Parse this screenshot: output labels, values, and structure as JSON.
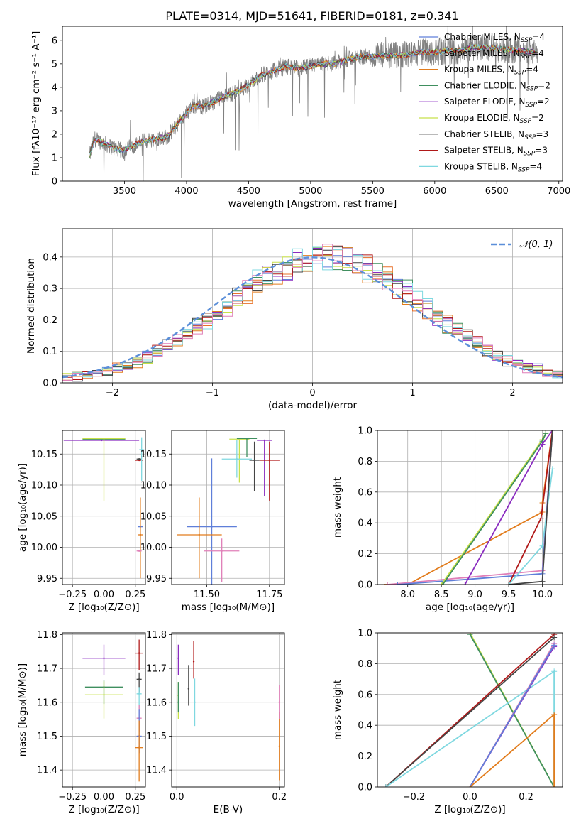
{
  "figure_title": "PLATE=0314, MJD=51641, FIBERID=0181, z=0.341",
  "colors": {
    "Chabrier MILES": "#5f7fd9",
    "Salpeter MILES": "#e8702a",
    "Kroupa MILES": "#e27c1c",
    "Chabrier ELODIE": "#3f8f5f",
    "Salpeter ELODIE": "#8a2cc0",
    "Kroupa ELODIE": "#c8e04a",
    "Chabrier STELIB": "#444444",
    "Salpeter STELIB": "#b01818",
    "Kroupa STELIB": "#7fd8e0",
    "pink": "#e07fb8",
    "data": "#808080",
    "normal": "#5b8fd9"
  },
  "chart_data": [
    {
      "id": "spectrum",
      "type": "line",
      "title": "PLATE=0314, MJD=51641, FIBERID=0181, z=0.341",
      "xlabel": "wavelength [Angstrom, rest frame]",
      "ylabel": "Flux [fλ10⁻¹⁷ erg cm⁻² s⁻¹ A⁻¹]",
      "xlim": [
        3000,
        7030
      ],
      "ylim": [
        0,
        6.6
      ],
      "xticks": [
        3500,
        4000,
        4500,
        5000,
        5500,
        6000,
        6500,
        7000
      ],
      "yticks": [
        0,
        1,
        2,
        3,
        4,
        5,
        6
      ],
      "grid": false,
      "legend_position": "top-right",
      "series": [
        {
          "name": "Chabrier MILES, N_SSP=4",
          "label_plain": "Chabrier MILES, N",
          "label_sub": "SSP",
          "label_tail": "=4",
          "color_key": "Chabrier MILES"
        },
        {
          "name": "Salpeter MILES, N_SSP=4",
          "label_plain": "Salpeter MILES, N",
          "label_sub": "SSP",
          "label_tail": "=4",
          "color_key": "Salpeter MILES"
        },
        {
          "name": "Kroupa MILES, N_SSP=4",
          "label_plain": "Kroupa MILES, N",
          "label_sub": "SSP",
          "label_tail": "=4",
          "color_key": "Kroupa MILES"
        },
        {
          "name": "Chabrier ELODIE, N_SSP=2",
          "label_plain": "Chabrier ELODIE, N",
          "label_sub": "SSP",
          "label_tail": "=2",
          "color_key": "Chabrier ELODIE"
        },
        {
          "name": "Salpeter ELODIE, N_SSP=2",
          "label_plain": "Salpeter ELODIE, N",
          "label_sub": "SSP",
          "label_tail": "=2",
          "color_key": "Salpeter ELODIE"
        },
        {
          "name": "Kroupa ELODIE, N_SSP=2",
          "label_plain": "Kroupa ELODIE, N",
          "label_sub": "SSP",
          "label_tail": "=2",
          "color_key": "Kroupa ELODIE"
        },
        {
          "name": "Chabrier STELIB, N_SSP=3",
          "label_plain": "Chabrier STELIB, N",
          "label_sub": "SSP",
          "label_tail": "=3",
          "color_key": "Chabrier STELIB"
        },
        {
          "name": "Salpeter STELIB, N_SSP=3",
          "label_plain": "Salpeter STELIB, N",
          "label_sub": "SSP",
          "label_tail": "=3",
          "color_key": "Salpeter STELIB"
        },
        {
          "name": "Kroupa STELIB, N_SSP=4",
          "label_plain": "Kroupa STELIB, N",
          "label_sub": "SSP",
          "label_tail": "=4",
          "color_key": "Kroupa STELIB"
        }
      ],
      "continuum_approx": [
        [
          3220,
          1.1
        ],
        [
          3260,
          1.8
        ],
        [
          3300,
          1.7
        ],
        [
          3400,
          1.45
        ],
        [
          3480,
          1.3
        ],
        [
          3560,
          1.5
        ],
        [
          3650,
          1.7
        ],
        [
          3750,
          1.8
        ],
        [
          3850,
          1.9
        ],
        [
          3950,
          2.6
        ],
        [
          4050,
          3.2
        ],
        [
          4150,
          3.2
        ],
        [
          4300,
          3.6
        ],
        [
          4400,
          3.8
        ],
        [
          4500,
          4.1
        ],
        [
          4600,
          4.5
        ],
        [
          4700,
          4.7
        ],
        [
          4800,
          4.9
        ],
        [
          4900,
          4.8
        ],
        [
          5000,
          4.9
        ],
        [
          5100,
          5.0
        ],
        [
          5200,
          5.0
        ],
        [
          5300,
          5.2
        ],
        [
          5400,
          5.3
        ],
        [
          5500,
          5.3
        ],
        [
          5600,
          5.35
        ],
        [
          5700,
          5.35
        ],
        [
          5800,
          5.4
        ],
        [
          5900,
          5.5
        ],
        [
          6000,
          5.5
        ],
        [
          6100,
          5.55
        ],
        [
          6200,
          5.55
        ],
        [
          6300,
          5.7
        ],
        [
          6400,
          5.7
        ],
        [
          6500,
          5.65
        ],
        [
          6600,
          5.6
        ],
        [
          6700,
          5.55
        ],
        [
          6800,
          5.5
        ]
      ]
    },
    {
      "id": "residuals",
      "type": "line",
      "xlabel": "(data-model)/error",
      "ylabel": "Normed distribution",
      "xlim": [
        -2.5,
        2.5
      ],
      "ylim": [
        0,
        0.49
      ],
      "xticks": [
        -2,
        -1,
        0,
        1,
        2
      ],
      "xtick_labels": [
        "−2",
        "−1",
        "0",
        "1",
        "2"
      ],
      "yticks": [
        0,
        0.1,
        0.2,
        0.3,
        0.4
      ],
      "ytick_labels": [
        "0.0",
        "0.1",
        "0.2",
        "0.3",
        "0.4"
      ],
      "grid": true,
      "legend_position": "top-right",
      "legend": "𝒩(0, 1)",
      "bin_width": 0.1
    },
    {
      "id": "age_vs_Z",
      "type": "scatter",
      "xlabel": "Z [log₁₀(Z/Z⊙)]",
      "ylabel": "age  [log₁₀(age/yr)]",
      "xlim": [
        -0.33,
        0.33
      ],
      "ylim": [
        9.94,
        10.188
      ],
      "xticks": [
        -0.25,
        0,
        0.25
      ],
      "xtick_labels": [
        "−0.25",
        "0.00",
        "0.25"
      ],
      "yticks": [
        9.95,
        10.0,
        10.05,
        10.1,
        10.15
      ],
      "ytick_labels": [
        "9.95",
        "10.00",
        "10.05",
        "10.10",
        "10.15"
      ],
      "points": [
        {
          "c": "Salpeter ELODIE",
          "x": -0.02,
          "xerr": 0.3,
          "y": 10.172,
          "yerr": [
            0,
            0
          ]
        },
        {
          "c": "Chabrier ELODIE",
          "x": 0.0,
          "xerr": 0.17,
          "y": 10.174,
          "yerr": [
            0,
            0
          ]
        },
        {
          "c": "Kroupa ELODIE",
          "x": 0.0,
          "xerr": 0.17,
          "y": 10.175,
          "yerr": [
            0.1,
            0
          ]
        },
        {
          "c": "Salpeter STELIB",
          "x": 0.28,
          "xerr": 0.03,
          "y": 10.14,
          "yerr": [
            0,
            0
          ]
        },
        {
          "c": "Chabrier STELIB",
          "x": 0.28,
          "xerr": 0.02,
          "y": 10.142,
          "yerr": [
            0,
            0
          ]
        },
        {
          "c": "Kroupa STELIB",
          "x": 0.3,
          "xerr": 0.02,
          "y": 10.157,
          "yerr": [
            0.05,
            0.02
          ]
        },
        {
          "c": "Chabrier MILES",
          "x": 0.29,
          "xerr": 0.02,
          "y": 10.033,
          "yerr": [
            0,
            0
          ]
        },
        {
          "c": "Kroupa MILES",
          "x": 0.29,
          "xerr": 0.02,
          "y": 10.02,
          "yerr": [
            0.07,
            0.06
          ]
        },
        {
          "c": "pink",
          "x": 0.28,
          "xerr": 0.02,
          "y": 9.994,
          "yerr": [
            0,
            0
          ]
        }
      ]
    },
    {
      "id": "age_vs_mass",
      "type": "scatter",
      "xlabel": "mass [log₁₀(M/M⊙)]",
      "ylabel": "",
      "xlim": [
        11.36,
        11.81
      ],
      "ylim": [
        9.94,
        10.188
      ],
      "xticks": [
        11.5,
        11.75
      ],
      "xtick_labels": [
        "11.50",
        "11.75"
      ],
      "yticks": [
        9.95,
        10.0,
        10.05,
        10.1,
        10.15
      ],
      "ytick_labels": [
        "9.95",
        "10.00",
        "10.05",
        "10.10",
        "10.15"
      ],
      "points": [
        {
          "c": "Chabrier MILES",
          "x": 11.52,
          "xerr": 0.1,
          "y": 10.033,
          "yerr": [
            0.1,
            0.11
          ]
        },
        {
          "c": "Kroupa MILES",
          "x": 11.47,
          "xerr": 0.09,
          "y": 10.02,
          "yerr": [
            0.07,
            0.06
          ]
        },
        {
          "c": "pink",
          "x": 11.56,
          "xerr": 0.07,
          "y": 9.994,
          "yerr": [
            0.05,
            0.02
          ]
        },
        {
          "c": "Kroupa ELODIE",
          "x": 11.63,
          "xerr": 0.04,
          "y": 10.174,
          "yerr": [
            0.07,
            0
          ]
        },
        {
          "c": "Chabrier ELODIE",
          "x": 11.66,
          "xerr": 0.04,
          "y": 10.175,
          "yerr": [
            0.03,
            0
          ]
        },
        {
          "c": "Kroupa STELIB",
          "x": 11.62,
          "xerr": 0.06,
          "y": 10.142,
          "yerr": [
            0.03,
            0.03
          ]
        },
        {
          "c": "Salpeter ELODIE",
          "x": 11.73,
          "xerr": 0.03,
          "y": 10.172,
          "yerr": [
            0.09,
            0
          ]
        },
        {
          "c": "Chabrier STELIB",
          "x": 11.69,
          "xerr": 0.02,
          "y": 10.14,
          "yerr": [
            0.05,
            0.03
          ]
        },
        {
          "c": "Salpeter STELIB",
          "x": 11.75,
          "xerr": 0.04,
          "y": 10.14,
          "yerr": [
            0.065,
            0.03
          ]
        }
      ]
    },
    {
      "id": "massweight_vs_age",
      "type": "line",
      "xlabel": "age  [log₁₀(age/yr)]",
      "ylabel": "mass weight",
      "xlim": [
        7.55,
        10.3
      ],
      "ylim": [
        0,
        1.0
      ],
      "xticks": [
        8.0,
        8.5,
        9.0,
        9.5,
        10.0
      ],
      "xtick_labels": [
        "8.0",
        "8.5",
        "9.0",
        "9.5",
        "10.0"
      ],
      "yticks": [
        0,
        0.2,
        0.4,
        0.6,
        0.8,
        1.0
      ],
      "ytick_labels": [
        "0.0",
        "0.2",
        "0.4",
        "0.6",
        "0.8",
        "1.0"
      ],
      "grid": true,
      "series": [
        {
          "c": "Kroupa MILES",
          "x": [
            7.65,
            8.0,
            10.0,
            10.0,
            10.15
          ],
          "y": [
            0,
            0,
            0.47,
            0.53,
            1.0
          ]
        },
        {
          "c": "pink",
          "x": [
            7.7,
            10.0,
            10.15
          ],
          "y": [
            0,
            0.09,
            1.0
          ]
        },
        {
          "c": "Chabrier MILES",
          "x": [
            7.85,
            10.0,
            10.15
          ],
          "y": [
            0,
            0.07,
            1.0
          ]
        },
        {
          "c": "Kroupa ELODIE",
          "x": [
            8.5,
            10.0,
            10.05
          ],
          "y": [
            0,
            0.94,
            0.98
          ]
        },
        {
          "c": "Chabrier ELODIE",
          "x": [
            8.52,
            10.0,
            10.05
          ],
          "y": [
            0,
            0.93,
            0.98
          ]
        },
        {
          "c": "Salpeter ELODIE",
          "x": [
            8.85,
            10.0,
            10.15
          ],
          "y": [
            0,
            0.91,
            1.0
          ]
        },
        {
          "c": "Salpeter STELIB",
          "x": [
            9.5,
            9.98,
            10.15
          ],
          "y": [
            0,
            0.43,
            1.0
          ]
        },
        {
          "c": "Kroupa STELIB",
          "x": [
            9.5,
            10.0,
            10.15
          ],
          "y": [
            0,
            0.25,
            0.75
          ]
        },
        {
          "c": "Chabrier STELIB",
          "x": [
            9.5,
            10.0,
            10.15
          ],
          "y": [
            0,
            0.02,
            1.0
          ]
        }
      ]
    },
    {
      "id": "mass_vs_Z",
      "type": "scatter",
      "xlabel": "Z [log₁₀(Z/Z⊙)]",
      "ylabel": "mass [log₁₀(M/M⊙)]",
      "xlim": [
        -0.33,
        0.33
      ],
      "ylim": [
        11.35,
        11.805
      ],
      "xticks": [
        -0.25,
        0,
        0.25
      ],
      "xtick_labels": [
        "−0.25",
        "0.00",
        "0.25"
      ],
      "yticks": [
        11.4,
        11.5,
        11.6,
        11.7,
        11.8
      ],
      "ytick_labels": [
        "11.4",
        "11.5",
        "11.6",
        "11.7",
        "11.8"
      ],
      "points": [
        {
          "c": "Salpeter ELODIE",
          "x": 0.0,
          "xerr": 0.17,
          "y": 11.73,
          "yerr": [
            0.05,
            0.04
          ]
        },
        {
          "c": "Chabrier ELODIE",
          "x": 0.0,
          "xerr": 0.15,
          "y": 11.645,
          "yerr": [
            0.05,
            0.02
          ]
        },
        {
          "c": "Kroupa ELODIE",
          "x": 0.0,
          "xerr": 0.15,
          "y": 11.622,
          "yerr": [
            0.07,
            0.04
          ]
        },
        {
          "c": "Salpeter STELIB",
          "x": 0.28,
          "xerr": 0.03,
          "y": 11.745,
          "yerr": [
            0.05,
            0.04
          ]
        },
        {
          "c": "Chabrier STELIB",
          "x": 0.28,
          "xerr": 0.02,
          "y": 11.668,
          "yerr": [
            0.04,
            0.02
          ]
        },
        {
          "c": "Kroupa STELIB",
          "x": 0.28,
          "xerr": 0.02,
          "y": 11.625,
          "yerr": [
            0.05,
            0.02
          ]
        },
        {
          "c": "pink",
          "x": 0.28,
          "xerr": 0.02,
          "y": 11.553,
          "yerr": [
            0.04,
            0.04
          ]
        },
        {
          "c": "Chabrier MILES",
          "x": 0.28,
          "xerr": 0.02,
          "y": 11.5,
          "yerr": [
            0.05,
            0.08
          ]
        },
        {
          "c": "Kroupa MILES",
          "x": 0.28,
          "xerr": 0.03,
          "y": 11.466,
          "yerr": [
            0.1,
            0.08
          ]
        }
      ]
    },
    {
      "id": "mass_vs_ebv",
      "type": "scatter",
      "xlabel": "E(B-V)",
      "ylabel": "",
      "xlim": [
        -0.01,
        0.21
      ],
      "ylim": [
        11.35,
        11.805
      ],
      "xticks": [
        0.0,
        0.2
      ],
      "xtick_labels": [
        "0.0",
        "0.2"
      ],
      "yticks": [
        11.4,
        11.5,
        11.6,
        11.7,
        11.8
      ],
      "ytick_labels": [
        "11.4",
        "11.5",
        "11.6",
        "11.7",
        "11.8"
      ],
      "points": [
        {
          "c": "Salpeter ELODIE",
          "x": 0.003,
          "xerr": 0,
          "y": 11.73,
          "yerr": [
            0.05,
            0.04
          ]
        },
        {
          "c": "Kroupa ELODIE",
          "x": 0.003,
          "xerr": 0,
          "y": 11.62,
          "yerr": [
            0.07,
            0.04
          ]
        },
        {
          "c": "Chabrier ELODIE",
          "x": 0.003,
          "xerr": 0,
          "y": 11.6,
          "yerr": [
            0.03,
            0.06
          ]
        },
        {
          "c": "Chabrier STELIB",
          "x": 0.023,
          "xerr": 0,
          "y": 11.64,
          "yerr": [
            0.05,
            0.07
          ]
        },
        {
          "c": "Salpeter STELIB",
          "x": 0.033,
          "xerr": 0,
          "y": 11.72,
          "yerr": [
            0.05,
            0.06
          ]
        },
        {
          "c": "Kroupa STELIB",
          "x": 0.035,
          "xerr": 0,
          "y": 11.6,
          "yerr": [
            0.07,
            0.07
          ]
        },
        {
          "c": "Kroupa MILES",
          "x": 0.2,
          "xerr": 0,
          "y": 11.47,
          "yerr": [
            0.1,
            0.1
          ]
        },
        {
          "c": "pink",
          "x": 0.2,
          "xerr": 0,
          "y": 11.6,
          "yerr": [
            0.05,
            0.05
          ]
        }
      ]
    },
    {
      "id": "massweight_vs_Z",
      "type": "line",
      "xlabel": "Z [log₁₀(Z/Z⊙)]",
      "ylabel": "mass weight",
      "xlim": [
        -0.33,
        0.33
      ],
      "ylim": [
        0,
        1.0
      ],
      "xticks": [
        -0.2,
        0.0,
        0.2
      ],
      "xtick_labels": [
        "−0.2",
        "0.0",
        "0.2"
      ],
      "yticks": [
        0,
        0.2,
        0.4,
        0.6,
        0.8,
        1.0
      ],
      "ytick_labels": [
        "0.0",
        "0.2",
        "0.4",
        "0.6",
        "0.8",
        "1.0"
      ],
      "grid": true,
      "series": [
        {
          "c": "Kroupa ELODIE",
          "x": [
            0.0,
            0.3
          ],
          "y": [
            1.0,
            0.0
          ]
        },
        {
          "c": "Chabrier ELODIE",
          "x": [
            0.0,
            0.3
          ],
          "y": [
            0.99,
            0.0
          ]
        },
        {
          "c": "Salpeter STELIB",
          "x": [
            -0.3,
            0.3
          ],
          "y": [
            0.0,
            0.99
          ]
        },
        {
          "c": "Chabrier STELIB",
          "x": [
            -0.3,
            0.3
          ],
          "y": [
            0.0,
            0.97
          ]
        },
        {
          "c": "Kroupa STELIB",
          "x": [
            -0.3,
            0.3,
            0.3
          ],
          "y": [
            0.0,
            0.75,
            0.0
          ]
        },
        {
          "c": "Salpeter ELODIE",
          "x": [
            0.0,
            0.3
          ],
          "y": [
            0.0,
            0.91
          ]
        },
        {
          "c": "pink",
          "x": [
            0.0,
            0.3
          ],
          "y": [
            0.0,
            0.93
          ]
        },
        {
          "c": "Chabrier MILES",
          "x": [
            0.0,
            0.3
          ],
          "y": [
            0.0,
            0.92
          ]
        },
        {
          "c": "Kroupa MILES",
          "x": [
            0.0,
            0.3,
            0.3
          ],
          "y": [
            0.0,
            0.47,
            0.0
          ]
        }
      ]
    }
  ]
}
